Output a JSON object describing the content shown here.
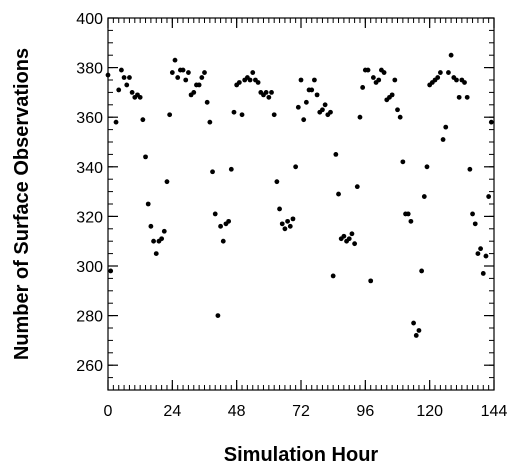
{
  "chart_data": {
    "type": "scatter",
    "title": "",
    "xlabel": "Simulation Hour",
    "ylabel": "Number of Surface Observations",
    "xlim": [
      0,
      144
    ],
    "ylim": [
      250,
      400
    ],
    "xticks": [
      0,
      24,
      48,
      72,
      96,
      120,
      144
    ],
    "yticks": [
      260,
      280,
      300,
      320,
      340,
      360,
      380,
      400
    ],
    "xtick_labels": [
      "0",
      "24",
      "48",
      "72",
      "96",
      "120",
      "144"
    ],
    "ytick_labels": [
      "260",
      "280",
      "300",
      "320",
      "340",
      "360",
      "380",
      "400"
    ],
    "grid": false,
    "marker_color": "#000000",
    "series": [
      {
        "points": [
          [
            0,
            377
          ],
          [
            1,
            298
          ],
          [
            3,
            358
          ],
          [
            4,
            371
          ],
          [
            5,
            379
          ],
          [
            6,
            376
          ],
          [
            7,
            373
          ],
          [
            8,
            376
          ],
          [
            9,
            370
          ],
          [
            10,
            368
          ],
          [
            11,
            369
          ],
          [
            12,
            368
          ],
          [
            13,
            359
          ],
          [
            14,
            344
          ],
          [
            15,
            325
          ],
          [
            16,
            316
          ],
          [
            17,
            310
          ],
          [
            18,
            305
          ],
          [
            19,
            310
          ],
          [
            20,
            311
          ],
          [
            21,
            314
          ],
          [
            22,
            334
          ],
          [
            23,
            361
          ],
          [
            24,
            378
          ],
          [
            25,
            383
          ],
          [
            26,
            376
          ],
          [
            27,
            379
          ],
          [
            28,
            379
          ],
          [
            29,
            375
          ],
          [
            30,
            378
          ],
          [
            31,
            369
          ],
          [
            32,
            370
          ],
          [
            33,
            373
          ],
          [
            34,
            373
          ],
          [
            35,
            376
          ],
          [
            36,
            378
          ],
          [
            37,
            366
          ],
          [
            38,
            358
          ],
          [
            39,
            338
          ],
          [
            40,
            321
          ],
          [
            41,
            280
          ],
          [
            42,
            316
          ],
          [
            43,
            310
          ],
          [
            44,
            317
          ],
          [
            45,
            318
          ],
          [
            46,
            339
          ],
          [
            47,
            362
          ],
          [
            48,
            373
          ],
          [
            49,
            374
          ],
          [
            50,
            361
          ],
          [
            51,
            375
          ],
          [
            52,
            376
          ],
          [
            53,
            375
          ],
          [
            54,
            378
          ],
          [
            55,
            375
          ],
          [
            56,
            374
          ],
          [
            57,
            370
          ],
          [
            58,
            369
          ],
          [
            59,
            370
          ],
          [
            60,
            368
          ],
          [
            61,
            370
          ],
          [
            62,
            361
          ],
          [
            63,
            334
          ],
          [
            64,
            323
          ],
          [
            65,
            317
          ],
          [
            66,
            315
          ],
          [
            67,
            318
          ],
          [
            68,
            316
          ],
          [
            69,
            319
          ],
          [
            70,
            340
          ],
          [
            71,
            364
          ],
          [
            72,
            375
          ],
          [
            73,
            359
          ],
          [
            74,
            366
          ],
          [
            75,
            371
          ],
          [
            76,
            371
          ],
          [
            77,
            375
          ],
          [
            78,
            369
          ],
          [
            79,
            362
          ],
          [
            80,
            363
          ],
          [
            81,
            365
          ],
          [
            82,
            361
          ],
          [
            83,
            362
          ],
          [
            84,
            296
          ],
          [
            85,
            345
          ],
          [
            86,
            329
          ],
          [
            87,
            311
          ],
          [
            88,
            312
          ],
          [
            89,
            310
          ],
          [
            90,
            311
          ],
          [
            91,
            313
          ],
          [
            92,
            309
          ],
          [
            93,
            332
          ],
          [
            94,
            360
          ],
          [
            95,
            372
          ],
          [
            96,
            379
          ],
          [
            97,
            379
          ],
          [
            98,
            294
          ],
          [
            99,
            376
          ],
          [
            100,
            374
          ],
          [
            101,
            375
          ],
          [
            102,
            379
          ],
          [
            103,
            378
          ],
          [
            104,
            367
          ],
          [
            105,
            368
          ],
          [
            106,
            369
          ],
          [
            107,
            375
          ],
          [
            108,
            363
          ],
          [
            109,
            360
          ],
          [
            110,
            342
          ],
          [
            111,
            321
          ],
          [
            112,
            321
          ],
          [
            113,
            318
          ],
          [
            114,
            277
          ],
          [
            115,
            272
          ],
          [
            116,
            274
          ],
          [
            117,
            298
          ],
          [
            118,
            328
          ],
          [
            119,
            340
          ],
          [
            120,
            373
          ],
          [
            121,
            374
          ],
          [
            122,
            375
          ],
          [
            123,
            376
          ],
          [
            124,
            378
          ],
          [
            125,
            351
          ],
          [
            126,
            356
          ],
          [
            127,
            378
          ],
          [
            128,
            385
          ],
          [
            129,
            376
          ],
          [
            130,
            375
          ],
          [
            131,
            368
          ],
          [
            132,
            375
          ],
          [
            133,
            374
          ],
          [
            134,
            368
          ],
          [
            135,
            339
          ],
          [
            136,
            321
          ],
          [
            137,
            317
          ],
          [
            138,
            305
          ],
          [
            139,
            307
          ],
          [
            140,
            297
          ],
          [
            141,
            304
          ],
          [
            142,
            328
          ],
          [
            143,
            358
          ]
        ]
      }
    ]
  }
}
